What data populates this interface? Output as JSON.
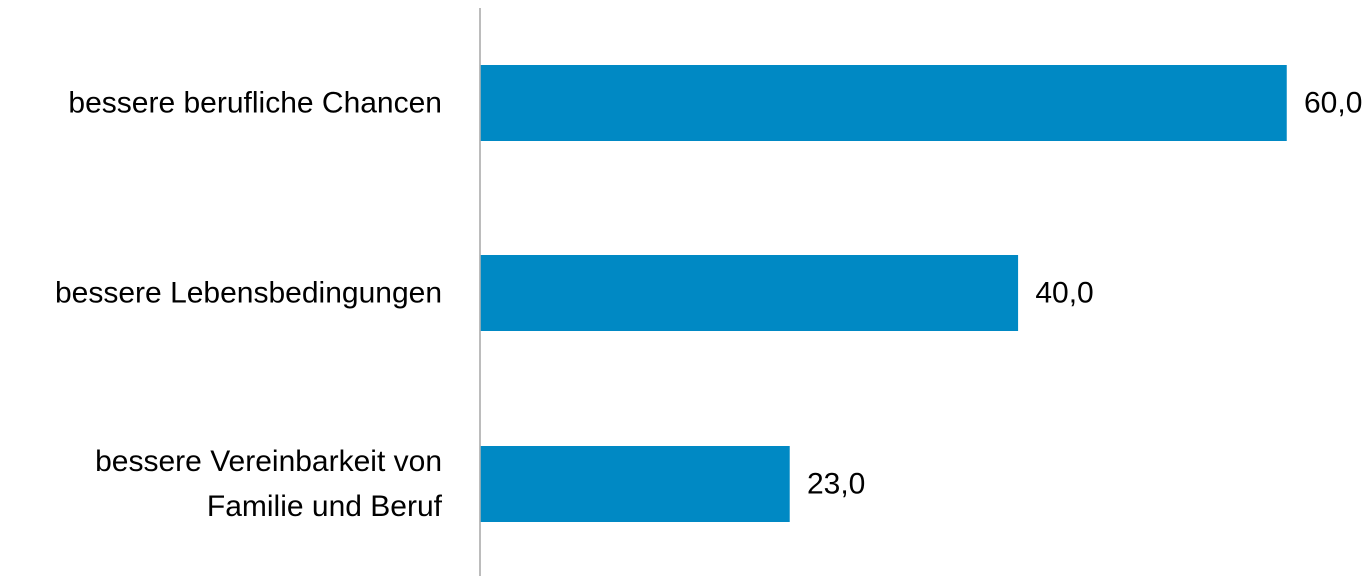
{
  "chart_data": {
    "type": "bar",
    "orientation": "horizontal",
    "categories": [
      [
        "bessere berufliche Chancen"
      ],
      [
        "bessere Lebensbedingungen"
      ],
      [
        "bessere Vereinbarkeit von",
        "Familie und Beruf"
      ]
    ],
    "values": [
      60.0,
      40.0,
      23.0
    ],
    "value_labels": [
      "60,0",
      "40,0",
      "23,0"
    ],
    "xlim": [
      0,
      60
    ],
    "grid": false,
    "legend": "none",
    "colors": {
      "bar": "#0089C4",
      "axis": "#A6A6A6",
      "text": "#000000"
    }
  }
}
